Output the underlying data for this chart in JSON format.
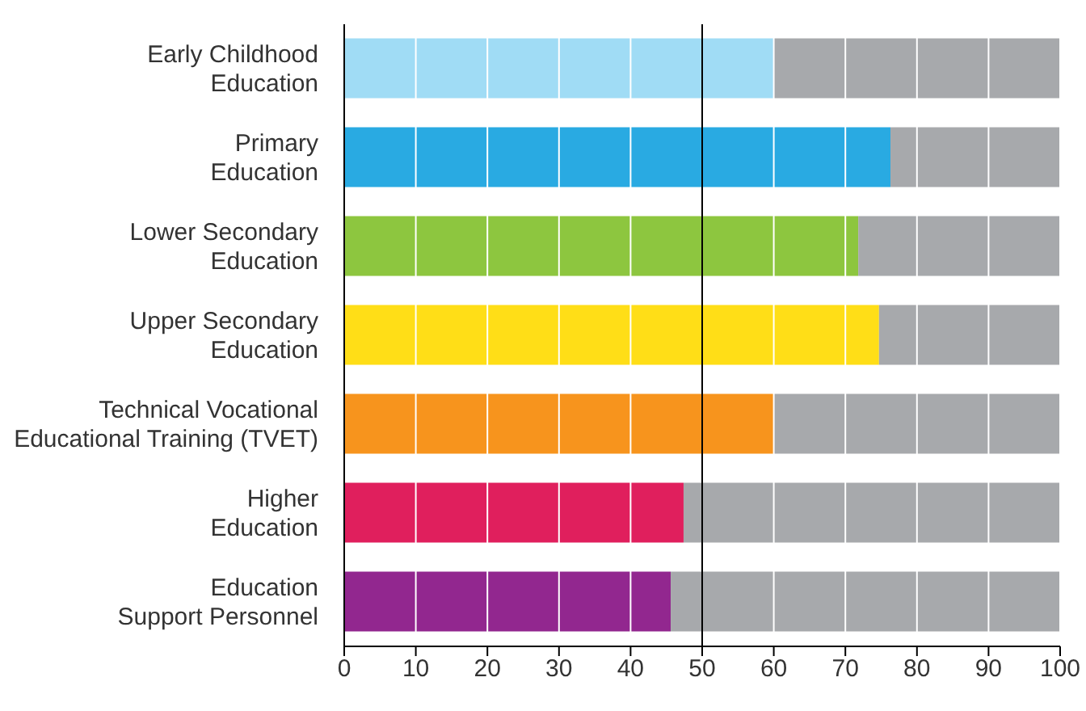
{
  "chart_data": {
    "type": "bar",
    "orientation": "horizontal",
    "stacked": true,
    "categories": [
      "Early Childhood Education",
      "Primary Education",
      "Lower Secondary Education",
      "Upper Secondary Education",
      "Technical Vocational Educational Training (TVET)",
      "Higher Education",
      "Education Support Personnel"
    ],
    "series": [
      {
        "colors": [
          "#a0dcf5",
          "#29aae2",
          "#8dc63f",
          "#ffde17",
          "#f7941d",
          "#e01f5d",
          "#92278f"
        ],
        "values": [
          60,
          76.3,
          71.8,
          74.7,
          60,
          47.4,
          45.6
        ]
      },
      {
        "color": "#a7a9ac",
        "values": [
          40,
          23.7,
          28.2,
          25.3,
          40,
          52.6,
          54.4
        ]
      }
    ],
    "xlim": [
      0,
      100
    ],
    "xticks": [
      0,
      10,
      20,
      30,
      40,
      50,
      60,
      70,
      80,
      90,
      100
    ],
    "grid": "x",
    "ref_lines": [
      {
        "axis": "x",
        "value": 50,
        "color": "#000000"
      }
    ]
  }
}
